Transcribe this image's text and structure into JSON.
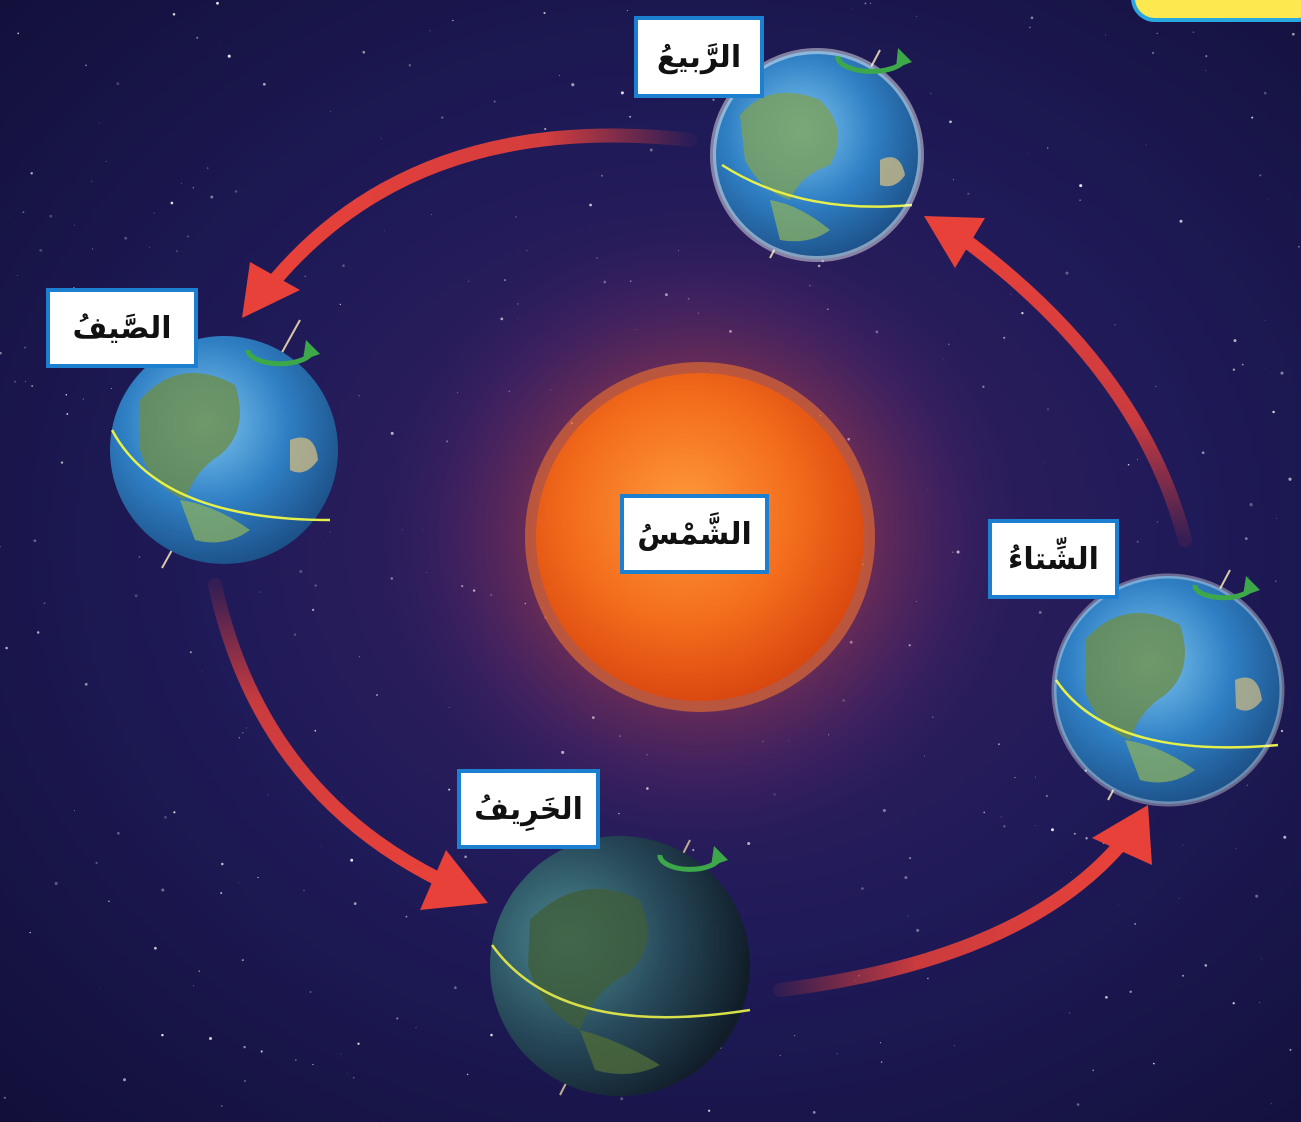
{
  "labels": {
    "spring": "الرَّبيعُ",
    "summer": "الصَّيفُ",
    "autumn": "الخَرِيفُ",
    "winter": "الشِّتاءُ",
    "sun": "الشَّمْسُ"
  },
  "colors": {
    "label_border": "#1d7fcf",
    "orbit_arrow": "#e8413a",
    "sun": "#f26a1b",
    "space": "#1b1850",
    "corner_tag": "#fce94f"
  },
  "icons": {
    "earth": "earth-globe-icon",
    "rotation": "rotation-arrow-icon",
    "orbit": "orbit-arrow-icon"
  }
}
